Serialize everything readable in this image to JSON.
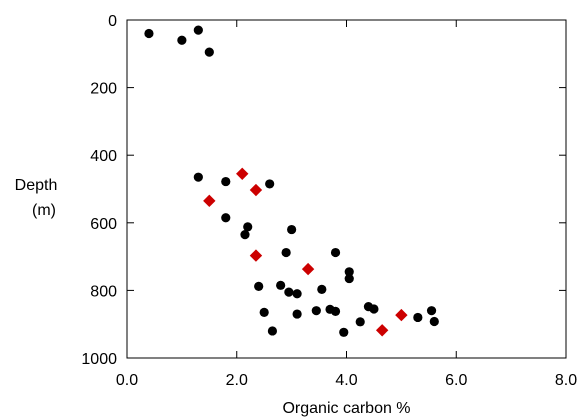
{
  "chart_data": {
    "type": "scatter",
    "title": "",
    "xlabel": "Organic carbon %",
    "ylabel_lines": [
      "Depth",
      "(m)"
    ],
    "xlim": [
      0,
      8
    ],
    "ylim": [
      0,
      1000
    ],
    "y_inverted": true,
    "grid": false,
    "legend": "none",
    "x_ticks": [
      0,
      2,
      4,
      6,
      8
    ],
    "x_tick_labels": [
      "0.0",
      "2.0",
      "4.0",
      "6.0",
      "8.0"
    ],
    "y_ticks": [
      0,
      200,
      400,
      600,
      800,
      1000
    ],
    "y_tick_labels": [
      "0",
      "200",
      "400",
      "600",
      "800",
      "1000"
    ],
    "series": [
      {
        "marker": "circle",
        "color": "#000000",
        "points": [
          [
            0.4,
            40
          ],
          [
            1.0,
            60
          ],
          [
            1.3,
            30
          ],
          [
            1.5,
            95
          ],
          [
            1.3,
            465
          ],
          [
            1.8,
            478
          ],
          [
            2.6,
            485
          ],
          [
            1.8,
            585
          ],
          [
            2.2,
            612
          ],
          [
            2.15,
            635
          ],
          [
            3.0,
            620
          ],
          [
            2.9,
            688
          ],
          [
            3.8,
            688
          ],
          [
            4.05,
            745
          ],
          [
            4.05,
            765
          ],
          [
            2.4,
            788
          ],
          [
            2.8,
            785
          ],
          [
            2.95,
            805
          ],
          [
            3.1,
            810
          ],
          [
            3.55,
            797
          ],
          [
            3.45,
            860
          ],
          [
            3.7,
            856
          ],
          [
            3.8,
            862
          ],
          [
            4.4,
            848
          ],
          [
            4.5,
            855
          ],
          [
            2.5,
            865
          ],
          [
            3.1,
            870
          ],
          [
            4.25,
            893
          ],
          [
            2.65,
            920
          ],
          [
            3.95,
            924
          ],
          [
            5.3,
            880
          ],
          [
            5.55,
            860
          ],
          [
            5.6,
            892
          ]
        ]
      },
      {
        "marker": "diamond",
        "color": "#cc0000",
        "points": [
          [
            2.1,
            455
          ],
          [
            2.35,
            503
          ],
          [
            1.5,
            535
          ],
          [
            2.35,
            697
          ],
          [
            3.3,
            737
          ],
          [
            5.0,
            873
          ],
          [
            4.65,
            918
          ]
        ]
      }
    ]
  }
}
